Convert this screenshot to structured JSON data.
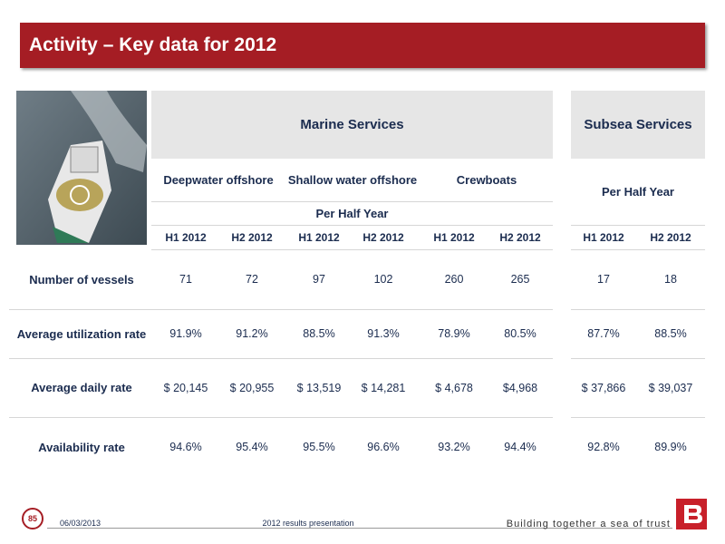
{
  "header": {
    "title": "Activity – Key data for 2012"
  },
  "table": {
    "groups": [
      "Marine Services",
      "Subsea Services"
    ],
    "segments": [
      "Deepwater offshore",
      "Shallow water offshore",
      "Crewboats"
    ],
    "marine_period_note": "Per Half Year",
    "subsea_period_note": "Per Half Year",
    "periods": [
      "H1 2012",
      "H2 2012",
      "H1 2012",
      "H2 2012",
      "H1 2012",
      "H2 2012",
      "H1 2012",
      "H2 2012"
    ],
    "rows": [
      {
        "label": "Number of vessels",
        "cells": [
          "71",
          "72",
          "97",
          "102",
          "260",
          "265",
          "17",
          "18"
        ]
      },
      {
        "label": "Average utilization rate",
        "cells": [
          "91.9%",
          "91.2%",
          "88.5%",
          "91.3%",
          "78.9%",
          "80.5%",
          "87.7%",
          "88.5%"
        ]
      },
      {
        "label": "Average daily rate",
        "cells": [
          "$ 20,145",
          "$ 20,955",
          "$ 13,519",
          "$ 14,281",
          "$ 4,678",
          "$4,968",
          "$ 37,866",
          "$ 39,037"
        ]
      },
      {
        "label": "Availability rate",
        "cells": [
          "94.6%",
          "95.4%",
          "95.5%",
          "96.6%",
          "93.2%",
          "94.4%",
          "92.8%",
          "89.9%"
        ]
      }
    ]
  },
  "footer": {
    "page": "85",
    "date": "06/03/2013",
    "presentation": "2012 results presentation",
    "tagline": "Building together a sea of trust"
  }
}
